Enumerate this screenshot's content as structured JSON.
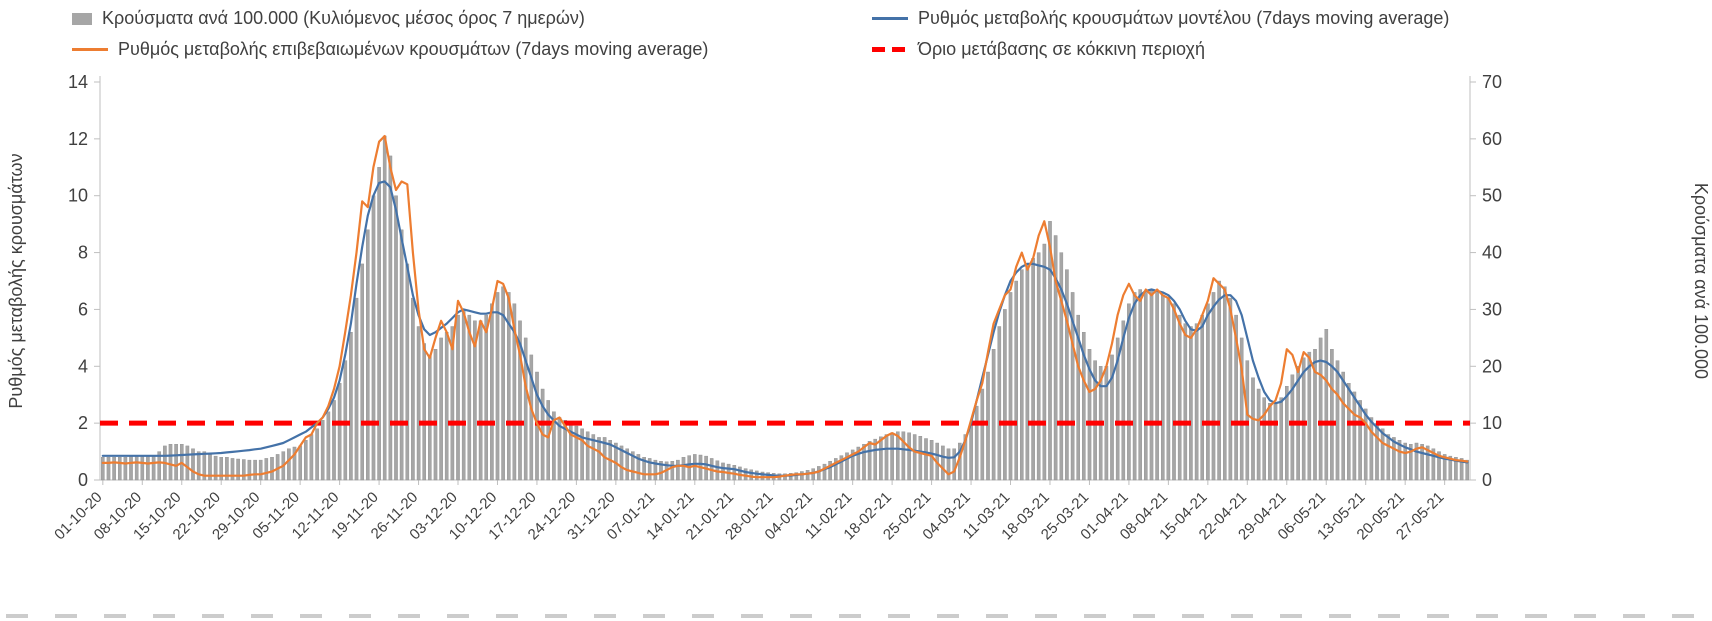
{
  "chart_data": {
    "type": "combo-bar-line",
    "title": "",
    "grid": false,
    "legend_position": "top",
    "x_axis": {
      "days_per_tick": 7,
      "n_points": 243,
      "ticklabels": [
        "01-10-20",
        "08-10-20",
        "15-10-20",
        "22-10-20",
        "29-10-20",
        "05-11-20",
        "12-11-20",
        "19-11-20",
        "26-11-20",
        "03-12-20",
        "10-12-20",
        "17-12-20",
        "24-12-20",
        "31-12-20",
        "07-01-21",
        "14-01-21",
        "21-01-21",
        "28-01-21",
        "04-02-21",
        "11-02-21",
        "18-02-21",
        "25-02-21",
        "04-03-21",
        "11-03-21",
        "18-03-21",
        "25-03-21",
        "01-04-21",
        "08-04-21",
        "15-04-21",
        "22-04-21",
        "29-04-21",
        "06-05-21",
        "13-05-21",
        "20-05-21",
        "27-05-21"
      ]
    },
    "y_left": {
      "label": "Ρυθμός μεταβολής κρουσμάτων",
      "min": 0,
      "max": 14,
      "tick_step": 2,
      "ticks": [
        0,
        2,
        4,
        6,
        8,
        10,
        12,
        14
      ]
    },
    "y_right": {
      "label": "Κρούσματα ανά 100.000",
      "min": 0,
      "max": 70,
      "tick_step": 10,
      "ticks": [
        0,
        10,
        20,
        30,
        40,
        50,
        60,
        70
      ]
    },
    "threshold": {
      "name": "Όριο μετάβασης σε κόκκινη περιοχή",
      "axis": "left",
      "value": 2,
      "color": "#ff0000",
      "style": "dashed"
    },
    "series": [
      {
        "name": "Κρούσματα ανά 100.000 (Κυλιόμενος μέσος όρος 7 ημερών)",
        "type": "bar",
        "axis": "right",
        "color": "#a6a6a6",
        "values": [
          4,
          4,
          4,
          4,
          4,
          4.2,
          4.2,
          4.3,
          4.3,
          4.3,
          5,
          6,
          6.3,
          6.3,
          6.3,
          6,
          5.5,
          5,
          5,
          4.5,
          4.2,
          4,
          4,
          3.8,
          3.7,
          3.6,
          3.5,
          3.5,
          3.5,
          3.8,
          4,
          4.5,
          5,
          5.5,
          5.8,
          6,
          7,
          8,
          9,
          10.5,
          12,
          14,
          17,
          21,
          26,
          32,
          38,
          44,
          50,
          55,
          60.5,
          57,
          50,
          44,
          38,
          32,
          27,
          24,
          22,
          23,
          25,
          26,
          27,
          29,
          30,
          29,
          28,
          28,
          29,
          31,
          33,
          34,
          33,
          31,
          28,
          25,
          22,
          19,
          16,
          14,
          12,
          11,
          10.5,
          10,
          9.5,
          9,
          8.5,
          8,
          7.5,
          7.5,
          7,
          6.5,
          6,
          5.5,
          5,
          4.5,
          4,
          3.8,
          3.5,
          3.3,
          3.2,
          3.3,
          3.5,
          4,
          4.3,
          4.5,
          4.4,
          4.2,
          3.8,
          3.4,
          3,
          2.8,
          2.6,
          2.3,
          2,
          1.8,
          1.6,
          1.4,
          1.3,
          1.2,
          1.1,
          1.1,
          1.2,
          1.3,
          1.5,
          1.7,
          2,
          2.4,
          2.8,
          3.3,
          3.8,
          4.3,
          4.8,
          5.3,
          5.8,
          6.3,
          6.8,
          7.2,
          7.6,
          8,
          8.3,
          8.5,
          8.5,
          8.3,
          8,
          7.7,
          7.3,
          7,
          6.5,
          6,
          5.5,
          5.5,
          6.5,
          8,
          10,
          13,
          16,
          19,
          23,
          27,
          30,
          33,
          35,
          37,
          38,
          39,
          40,
          41.5,
          45.5,
          43,
          40,
          37,
          33,
          29,
          26,
          23,
          21,
          20,
          20,
          22,
          25,
          28,
          31,
          33,
          33.5,
          33,
          33.5,
          33,
          32.5,
          32,
          31,
          29,
          27.5,
          27,
          27.5,
          29,
          31,
          33,
          35,
          34,
          32,
          29,
          25,
          21,
          18,
          16,
          14.5,
          13.5,
          13.5,
          14.5,
          16.5,
          18.5,
          20,
          21.5,
          22.5,
          23,
          25,
          26.5,
          23,
          21,
          19,
          17,
          15.5,
          14,
          12.5,
          11,
          10,
          9,
          8,
          7.5,
          7,
          6.5,
          6.3,
          6.5,
          6.3,
          6,
          5.5,
          5,
          4.5,
          4.2,
          4,
          3.8,
          3.5
        ]
      },
      {
        "name": "Ρυθμός μεταβολής κρουσμάτων μοντέλου (7days moving average)",
        "type": "line",
        "axis": "left",
        "color": "#4472a8",
        "values": [
          0.85,
          0.85,
          0.85,
          0.85,
          0.85,
          0.85,
          0.85,
          0.85,
          0.85,
          0.85,
          0.85,
          0.85,
          0.86,
          0.87,
          0.88,
          0.89,
          0.9,
          0.91,
          0.92,
          0.93,
          0.94,
          0.95,
          0.97,
          0.99,
          1.01,
          1.03,
          1.05,
          1.08,
          1.1,
          1.15,
          1.2,
          1.25,
          1.3,
          1.4,
          1.5,
          1.6,
          1.7,
          1.85,
          2,
          2.2,
          2.5,
          2.9,
          3.5,
          4.4,
          5.5,
          6.9,
          8.2,
          9.3,
          10,
          10.45,
          10.5,
          10.3,
          9.5,
          8.5,
          7.5,
          6.5,
          5.8,
          5.3,
          5.1,
          5.2,
          5.35,
          5.5,
          5.7,
          5.9,
          6,
          5.95,
          5.9,
          5.85,
          5.85,
          5.9,
          5.9,
          5.8,
          5.5,
          5.2,
          4.8,
          4.2,
          3.6,
          3,
          2.6,
          2.3,
          2.1,
          1.9,
          1.8,
          1.7,
          1.6,
          1.5,
          1.45,
          1.4,
          1.35,
          1.3,
          1.25,
          1.15,
          1.05,
          0.95,
          0.85,
          0.75,
          0.68,
          0.62,
          0.58,
          0.55,
          0.52,
          0.5,
          0.5,
          0.52,
          0.55,
          0.57,
          0.57,
          0.55,
          0.5,
          0.45,
          0.42,
          0.4,
          0.38,
          0.33,
          0.28,
          0.25,
          0.22,
          0.2,
          0.18,
          0.16,
          0.15,
          0.15,
          0.16,
          0.18,
          0.2,
          0.22,
          0.25,
          0.3,
          0.38,
          0.45,
          0.55,
          0.65,
          0.75,
          0.85,
          0.92,
          0.98,
          1.02,
          1.06,
          1.08,
          1.1,
          1.1,
          1.1,
          1.08,
          1.06,
          1.03,
          1,
          0.97,
          0.93,
          0.88,
          0.82,
          0.78,
          0.8,
          1,
          1.4,
          2,
          2.8,
          3.6,
          4.4,
          5.2,
          5.9,
          6.5,
          7,
          7.3,
          7.5,
          7.6,
          7.6,
          7.55,
          7.5,
          7.4,
          7.1,
          6.7,
          6.2,
          5.6,
          5,
          4.4,
          3.9,
          3.5,
          3.3,
          3.3,
          3.6,
          4.2,
          5,
          5.7,
          6.2,
          6.5,
          6.65,
          6.7,
          6.65,
          6.6,
          6.5,
          6.3,
          6,
          5.6,
          5.3,
          5.25,
          5.4,
          5.8,
          6.1,
          6.35,
          6.5,
          6.5,
          6.3,
          5.8,
          5,
          4.2,
          3.6,
          3.1,
          2.8,
          2.7,
          2.75,
          2.95,
          3.2,
          3.5,
          3.8,
          4,
          4.15,
          4.2,
          4.15,
          4,
          3.8,
          3.5,
          3.2,
          2.9,
          2.6,
          2.3,
          2.05,
          1.85,
          1.65,
          1.5,
          1.35,
          1.25,
          1.15,
          1.08,
          1,
          0.95,
          0.9,
          0.85,
          0.8,
          0.75,
          0.72,
          0.68,
          0.65,
          0.62
        ]
      },
      {
        "name": "Ρυθμός μεταβολής επιβεβαιωμένων κρουσμάτων (7days moving average)",
        "type": "line",
        "axis": "left",
        "color": "#ed7d31",
        "values": [
          0.6,
          0.6,
          0.62,
          0.6,
          0.58,
          0.6,
          0.62,
          0.6,
          0.58,
          0.6,
          0.62,
          0.6,
          0.55,
          0.5,
          0.6,
          0.45,
          0.3,
          0.2,
          0.15,
          0.15,
          0.15,
          0.15,
          0.15,
          0.15,
          0.15,
          0.15,
          0.18,
          0.2,
          0.2,
          0.25,
          0.3,
          0.4,
          0.5,
          0.7,
          0.9,
          1.2,
          1.5,
          1.6,
          2,
          2.2,
          2.6,
          3.2,
          4,
          5.2,
          6.5,
          8,
          9.8,
          9.6,
          11,
          11.9,
          12.1,
          11,
          10.2,
          10.5,
          10.4,
          8,
          6,
          4.6,
          4.3,
          5,
          5.6,
          5.2,
          4.6,
          6.3,
          5.9,
          5.2,
          4.7,
          5.6,
          5.2,
          6,
          7,
          6.9,
          6.4,
          5.3,
          4.4,
          3.3,
          2.5,
          2,
          1.6,
          1.5,
          2.1,
          2.2,
          1.9,
          1.6,
          1.5,
          1.4,
          1.2,
          1.1,
          1,
          0.8,
          0.7,
          0.6,
          0.45,
          0.35,
          0.3,
          0.25,
          0.2,
          0.2,
          0.2,
          0.25,
          0.35,
          0.45,
          0.5,
          0.5,
          0.45,
          0.5,
          0.45,
          0.4,
          0.35,
          0.3,
          0.28,
          0.25,
          0.22,
          0.18,
          0.15,
          0.12,
          0.1,
          0.1,
          0.1,
          0.1,
          0.12,
          0.15,
          0.18,
          0.2,
          0.2,
          0.22,
          0.25,
          0.3,
          0.4,
          0.5,
          0.6,
          0.7,
          0.8,
          0.9,
          1,
          1.15,
          1.3,
          1.25,
          1.4,
          1.55,
          1.65,
          1.55,
          1.35,
          1.15,
          1,
          0.95,
          0.9,
          0.85,
          0.6,
          0.4,
          0.2,
          0.3,
          0.8,
          1.4,
          2.1,
          2.8,
          3.4,
          4.5,
          5.5,
          6,
          6.5,
          6.7,
          7.5,
          8,
          7.4,
          7.8,
          8.6,
          9.1,
          8.2,
          7,
          6.3,
          5.6,
          4.8,
          4,
          3.5,
          3.1,
          3.2,
          3.5,
          4,
          4.8,
          5.8,
          6.5,
          6.9,
          6.5,
          6.3,
          6.7,
          6.5,
          6.7,
          6.5,
          6.4,
          6,
          5.5,
          5.1,
          5,
          5.3,
          5.8,
          6.3,
          7.1,
          6.9,
          6.7,
          6,
          5,
          3.9,
          2.3,
          2.15,
          2.1,
          2.3,
          2.6,
          2.8,
          3.4,
          4.6,
          4.4,
          3.8,
          4.5,
          4.3,
          3.8,
          3.7,
          3.5,
          3.2,
          3,
          2.7,
          2.5,
          2.3,
          2.2,
          2,
          1.7,
          1.5,
          1.3,
          1.2,
          1.1,
          1,
          0.95,
          1,
          1.1,
          1.15,
          1.05,
          0.95,
          0.85,
          0.8,
          0.75,
          0.7,
          0.68,
          0.65
        ]
      }
    ],
    "axis_line_color": "#bfbfbf",
    "text_color": "#404040"
  }
}
